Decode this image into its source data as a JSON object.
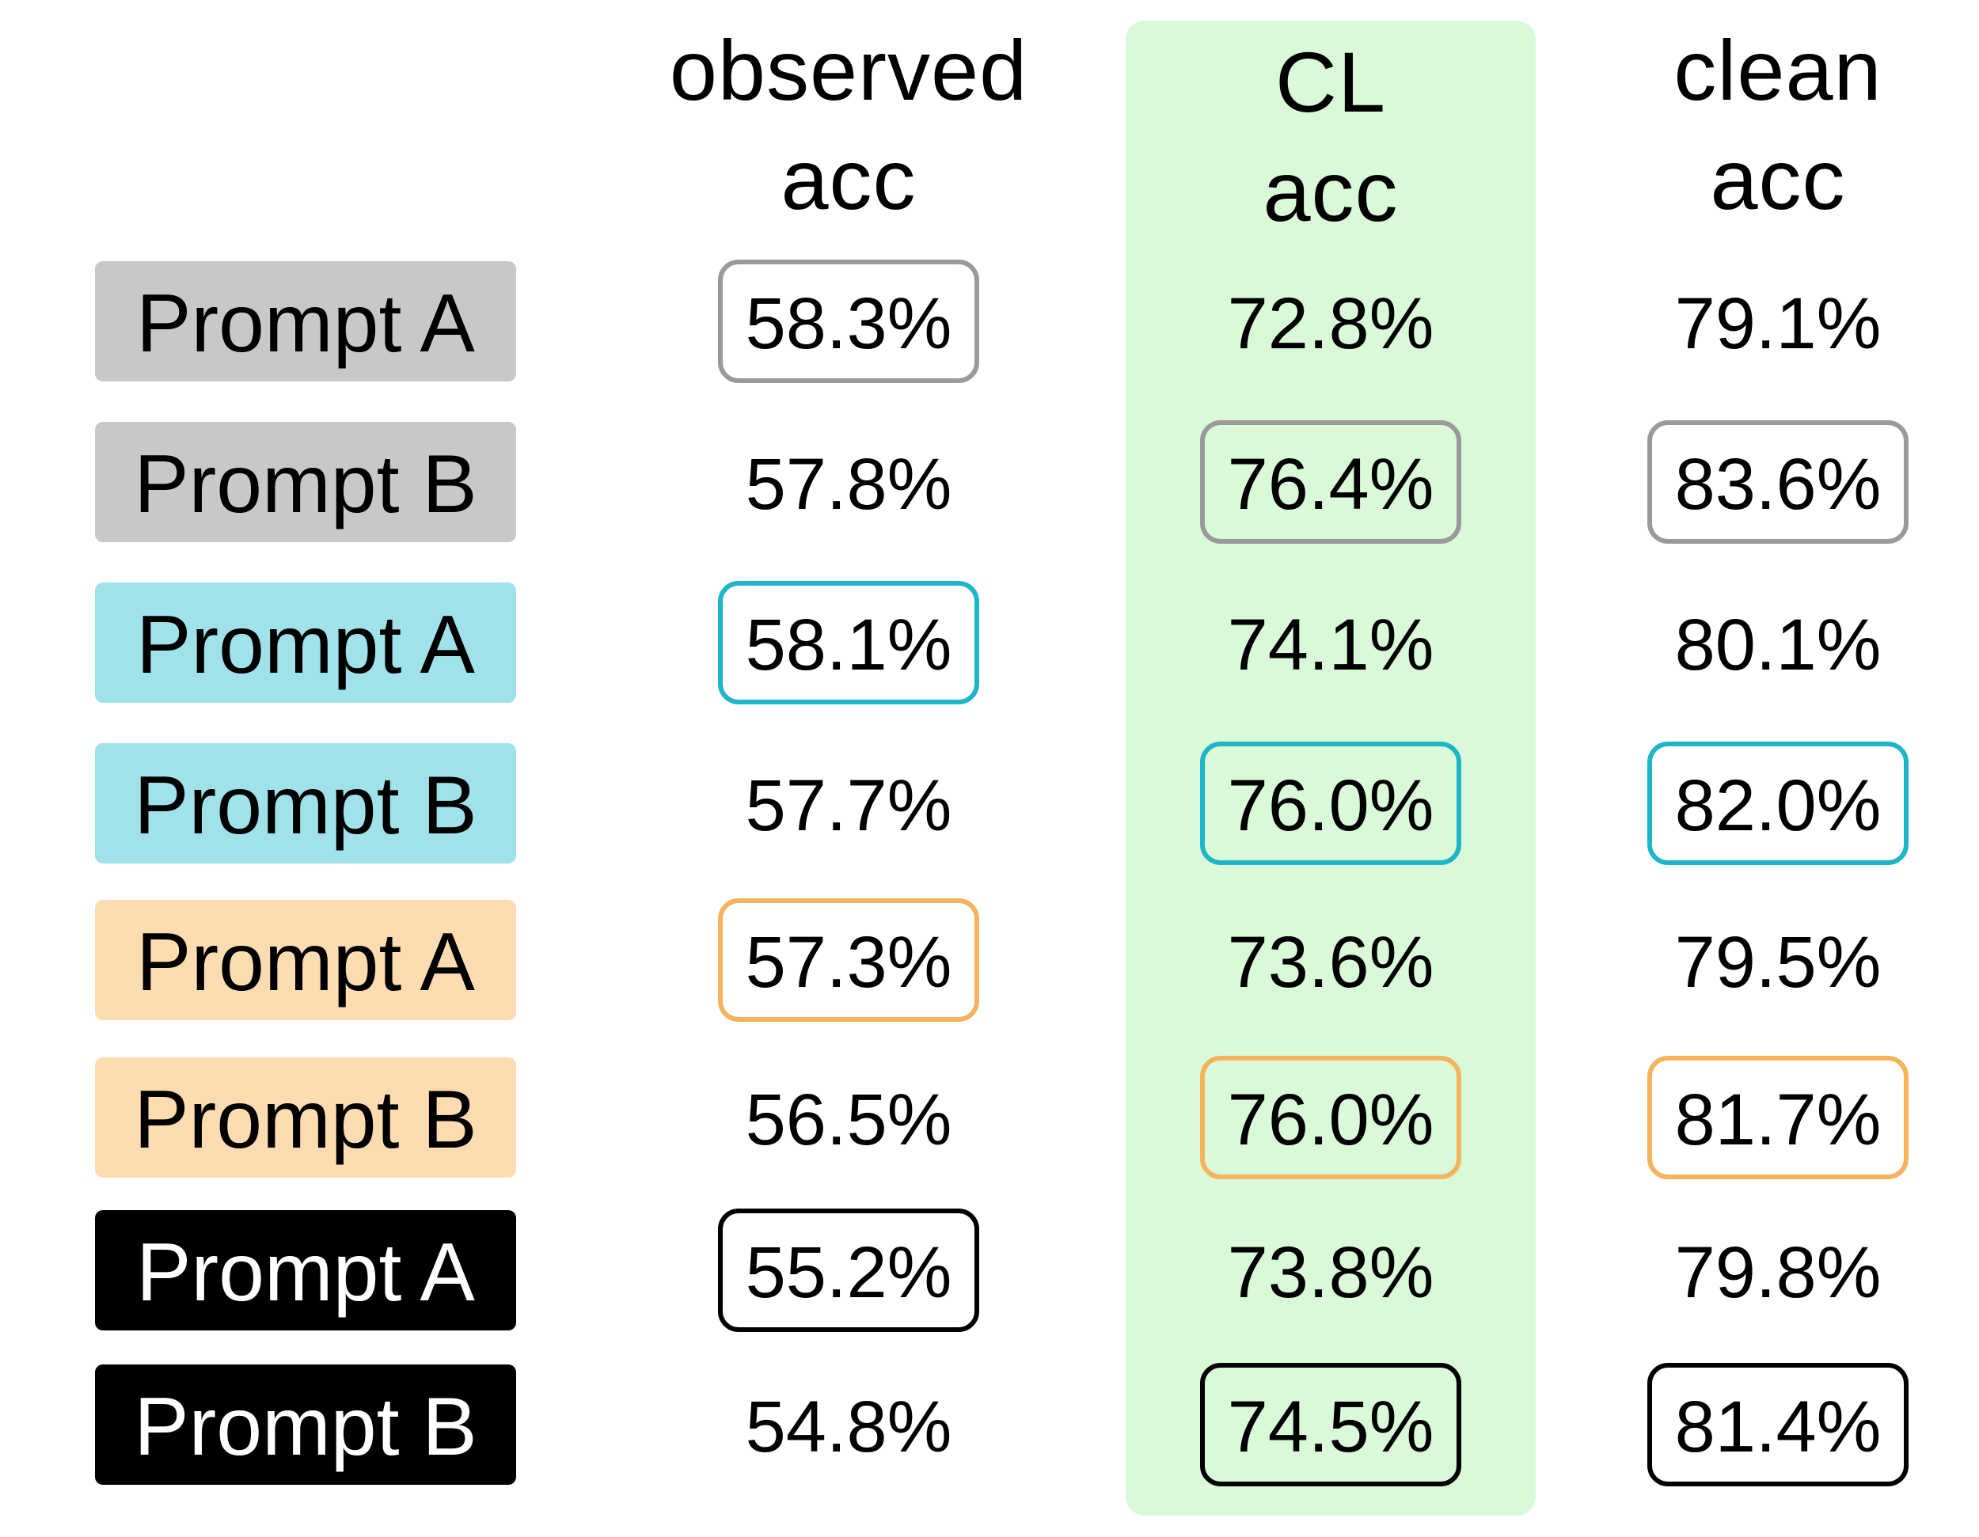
{
  "chart_data": {
    "type": "table",
    "columns": [
      {
        "key": "observed",
        "lines": [
          "observed",
          "acc"
        ]
      },
      {
        "key": "cl",
        "lines": [
          "CL",
          "acc"
        ]
      },
      {
        "key": "clean",
        "lines": [
          "clean",
          "acc"
        ]
      }
    ],
    "highlight_column": "cl",
    "rows": [
      {
        "label": "Prompt A",
        "group_color": "#c8c8c8",
        "text_color": "#000000",
        "box_color": "#9a9a9a",
        "values": [
          "58.3%",
          "72.8%",
          "79.1%"
        ],
        "boxed": [
          true,
          false,
          false
        ]
      },
      {
        "label": "Prompt B",
        "group_color": "#c8c8c8",
        "text_color": "#000000",
        "box_color": "#9a9a9a",
        "values": [
          "57.8%",
          "76.4%",
          "83.6%"
        ],
        "boxed": [
          false,
          true,
          true
        ]
      },
      {
        "label": "Prompt A",
        "group_color": "#a0e2ea",
        "text_color": "#000000",
        "box_color": "#1fb5c9",
        "values": [
          "58.1%",
          "74.1%",
          "80.1%"
        ],
        "boxed": [
          true,
          false,
          false
        ]
      },
      {
        "label": "Prompt B",
        "group_color": "#a0e2ea",
        "text_color": "#000000",
        "box_color": "#1fb5c9",
        "values": [
          "57.7%",
          "76.0%",
          "82.0%"
        ],
        "boxed": [
          false,
          true,
          true
        ]
      },
      {
        "label": "Prompt A",
        "group_color": "#fddcb1",
        "text_color": "#000000",
        "box_color": "#f5b35c",
        "values": [
          "57.3%",
          "73.6%",
          "79.5%"
        ],
        "boxed": [
          true,
          false,
          false
        ]
      },
      {
        "label": "Prompt B",
        "group_color": "#fddcb1",
        "text_color": "#000000",
        "box_color": "#f5b35c",
        "values": [
          "56.5%",
          "76.0%",
          "81.7%"
        ],
        "boxed": [
          false,
          true,
          true
        ]
      },
      {
        "label": "Prompt A",
        "group_color": "#000000",
        "text_color": "#ffffff",
        "box_color": "#000000",
        "values": [
          "55.2%",
          "73.8%",
          "79.8%"
        ],
        "boxed": [
          true,
          false,
          false
        ]
      },
      {
        "label": "Prompt B",
        "group_color": "#000000",
        "text_color": "#ffffff",
        "box_color": "#000000",
        "values": [
          "54.8%",
          "74.5%",
          "81.4%"
        ],
        "boxed": [
          false,
          true,
          true
        ]
      }
    ],
    "colors": {
      "highlight": "#d9f9d9",
      "cell_fill_highlight": "#d9f9d9",
      "cell_fill_default": "#ffffff"
    }
  }
}
